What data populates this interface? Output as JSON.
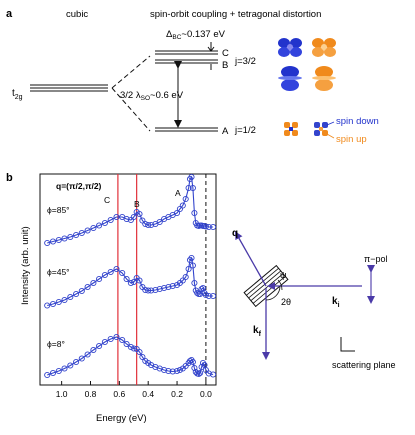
{
  "panel_a": {
    "label": "a",
    "header_left": "cubic",
    "header_right": "spin-orbit coupling + tetragonal distortion",
    "t2g_label": "t",
    "t2g_sub": "2g",
    "delta_label": "Δ",
    "delta_sub": "BC",
    "delta_value": "~0.137 eV",
    "so_label": "3/2 λ",
    "so_sub": "SO",
    "so_value": "~0.6 eV",
    "level_C": "C",
    "level_B": "B",
    "level_A": "A",
    "j32": "j=3/2",
    "j12": "j=1/2",
    "spin_down": "spin down",
    "spin_up": "spin up",
    "colors": {
      "spin_down": "#2233cc",
      "spin_up": "#f08a1c"
    }
  },
  "panel_b": {
    "label": "b",
    "q_text": "q=(π/2,π/2)",
    "curve_labels": [
      "ϕ=85°",
      "ϕ=45°",
      "ϕ=8°"
    ],
    "peak_labels": {
      "C": "C",
      "B": "B",
      "A": "A"
    },
    "ylabel": "Intensity (arb. unit)",
    "xlabel": "Energy (eV)",
    "xticks": [
      "1.0",
      "0.8",
      "0.6",
      "0.4",
      "0.2",
      "0.0"
    ],
    "colors": {
      "data": "#3344cc",
      "vline": "#e0303a"
    }
  },
  "scattering": {
    "q_label": "q",
    "phi_label": "ψ",
    "two_theta_label": "2θ",
    "ki_label": "k",
    "ki_sub": "i",
    "kf_label": "k",
    "kf_sub": "f",
    "pol_label": "π−pol",
    "plane_label": "scattering plane",
    "color": "#4a3aa8"
  },
  "chart_data": {
    "type": "line",
    "xlabel": "Energy (eV)",
    "ylabel": "Intensity (arb. unit)",
    "xlim": [
      1.15,
      -0.07
    ],
    "x_reversed": true,
    "xticks": [
      1.0,
      0.8,
      0.6,
      0.4,
      0.2,
      0.0
    ],
    "vlines": [
      0.61,
      0.48,
      0.0
    ],
    "series": [
      {
        "name": "ϕ=85°",
        "offset": 2,
        "x": [
          1.1,
          1.06,
          1.02,
          0.98,
          0.94,
          0.9,
          0.86,
          0.82,
          0.78,
          0.74,
          0.7,
          0.66,
          0.62,
          0.58,
          0.55,
          0.52,
          0.5,
          0.48,
          0.46,
          0.44,
          0.42,
          0.4,
          0.38,
          0.35,
          0.32,
          0.29,
          0.26,
          0.23,
          0.2,
          0.18,
          0.16,
          0.14,
          0.12,
          0.11,
          0.1,
          0.09,
          0.08,
          0.07,
          0.06,
          0.05,
          0.04,
          0.03,
          0.02,
          0.01,
          0.0,
          -0.02,
          -0.05
        ],
        "y": [
          0.0,
          0.03,
          0.06,
          0.09,
          0.12,
          0.16,
          0.2,
          0.25,
          0.3,
          0.35,
          0.4,
          0.46,
          0.52,
          0.52,
          0.48,
          0.46,
          0.52,
          0.62,
          0.58,
          0.45,
          0.38,
          0.36,
          0.36,
          0.38,
          0.42,
          0.48,
          0.52,
          0.56,
          0.6,
          0.68,
          0.75,
          0.88,
          1.1,
          1.28,
          1.32,
          1.1,
          0.6,
          0.4,
          0.35,
          0.34,
          0.35,
          0.35,
          0.34,
          0.34,
          0.33,
          0.32,
          0.32
        ]
      },
      {
        "name": "ϕ=45°",
        "offset": 1,
        "x": [
          1.1,
          1.06,
          1.02,
          0.98,
          0.94,
          0.9,
          0.86,
          0.82,
          0.78,
          0.74,
          0.7,
          0.66,
          0.62,
          0.58,
          0.55,
          0.52,
          0.5,
          0.48,
          0.46,
          0.44,
          0.42,
          0.4,
          0.38,
          0.35,
          0.32,
          0.29,
          0.26,
          0.23,
          0.2,
          0.18,
          0.16,
          0.14,
          0.12,
          0.11,
          0.1,
          0.09,
          0.08,
          0.07,
          0.06,
          0.05,
          0.04,
          0.03,
          0.02,
          0.01,
          0.0,
          -0.02,
          -0.05
        ],
        "y": [
          0.05,
          0.08,
          0.12,
          0.16,
          0.22,
          0.28,
          0.34,
          0.42,
          0.5,
          0.58,
          0.66,
          0.72,
          0.78,
          0.7,
          0.58,
          0.5,
          0.52,
          0.6,
          0.55,
          0.42,
          0.36,
          0.35,
          0.35,
          0.36,
          0.38,
          0.4,
          0.42,
          0.44,
          0.46,
          0.5,
          0.55,
          0.62,
          0.78,
          0.96,
          1.0,
          0.85,
          0.5,
          0.35,
          0.3,
          0.28,
          0.28,
          0.38,
          0.4,
          0.3,
          0.26,
          0.24,
          0.24
        ]
      },
      {
        "name": "ϕ=8°",
        "offset": 0,
        "x": [
          1.1,
          1.06,
          1.02,
          0.98,
          0.94,
          0.9,
          0.86,
          0.82,
          0.78,
          0.74,
          0.7,
          0.66,
          0.62,
          0.58,
          0.55,
          0.52,
          0.5,
          0.48,
          0.46,
          0.44,
          0.42,
          0.4,
          0.38,
          0.35,
          0.32,
          0.29,
          0.26,
          0.23,
          0.2,
          0.18,
          0.16,
          0.14,
          0.12,
          0.11,
          0.1,
          0.09,
          0.08,
          0.07,
          0.06,
          0.05,
          0.04,
          0.03,
          0.02,
          0.01,
          0.0,
          -0.02,
          -0.05
        ],
        "y": [
          0.02,
          0.06,
          0.1,
          0.15,
          0.21,
          0.28,
          0.35,
          0.43,
          0.52,
          0.6,
          0.68,
          0.74,
          0.78,
          0.72,
          0.64,
          0.58,
          0.55,
          0.54,
          0.48,
          0.38,
          0.3,
          0.26,
          0.22,
          0.18,
          0.15,
          0.12,
          0.1,
          0.09,
          0.1,
          0.12,
          0.15,
          0.2,
          0.26,
          0.3,
          0.32,
          0.28,
          0.16,
          0.08,
          0.05,
          0.04,
          0.06,
          0.18,
          0.26,
          0.22,
          0.12,
          0.05,
          0.03
        ]
      }
    ]
  }
}
